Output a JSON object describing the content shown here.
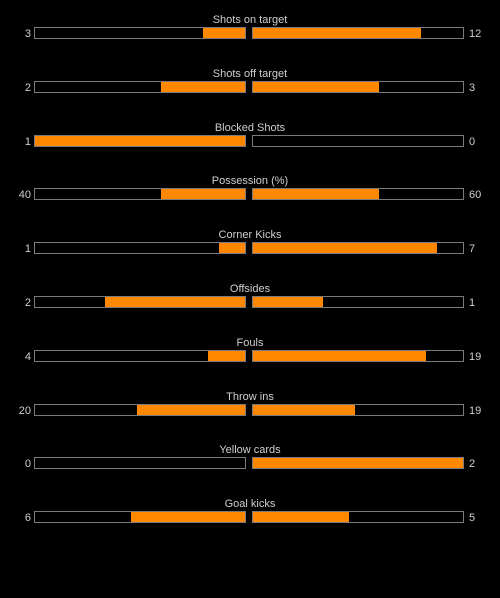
{
  "colors": {
    "background": "#000000",
    "fill": "#ff8800",
    "bar_border": "#7a7a7a",
    "text": "#cfcfcf"
  },
  "stats": [
    {
      "label": "Shots on target",
      "home": "3",
      "away": "12",
      "home_fill": 0.2,
      "away_fill": 0.8
    },
    {
      "label": "Shots off target",
      "home": "2",
      "away": "3",
      "home_fill": 0.4,
      "away_fill": 0.6
    },
    {
      "label": "Blocked Shots",
      "home": "1",
      "away": "0",
      "home_fill": 1.0,
      "away_fill": 0.0
    },
    {
      "label": "Possession (%)",
      "home": "40",
      "away": "60",
      "home_fill": 0.4,
      "away_fill": 0.6
    },
    {
      "label": "Corner Kicks",
      "home": "1",
      "away": "7",
      "home_fill": 0.125,
      "away_fill": 0.875
    },
    {
      "label": "Offsides",
      "home": "2",
      "away": "1",
      "home_fill": 0.667,
      "away_fill": 0.333
    },
    {
      "label": "Fouls",
      "home": "4",
      "away": "19",
      "home_fill": 0.174,
      "away_fill": 0.826
    },
    {
      "label": "Throw ins",
      "home": "20",
      "away": "19",
      "home_fill": 0.513,
      "away_fill": 0.487
    },
    {
      "label": "Yellow cards",
      "home": "0",
      "away": "2",
      "home_fill": 0.0,
      "away_fill": 1.0
    },
    {
      "label": "Goal kicks",
      "home": "6",
      "away": "5",
      "home_fill": 0.545,
      "away_fill": 0.455
    }
  ]
}
